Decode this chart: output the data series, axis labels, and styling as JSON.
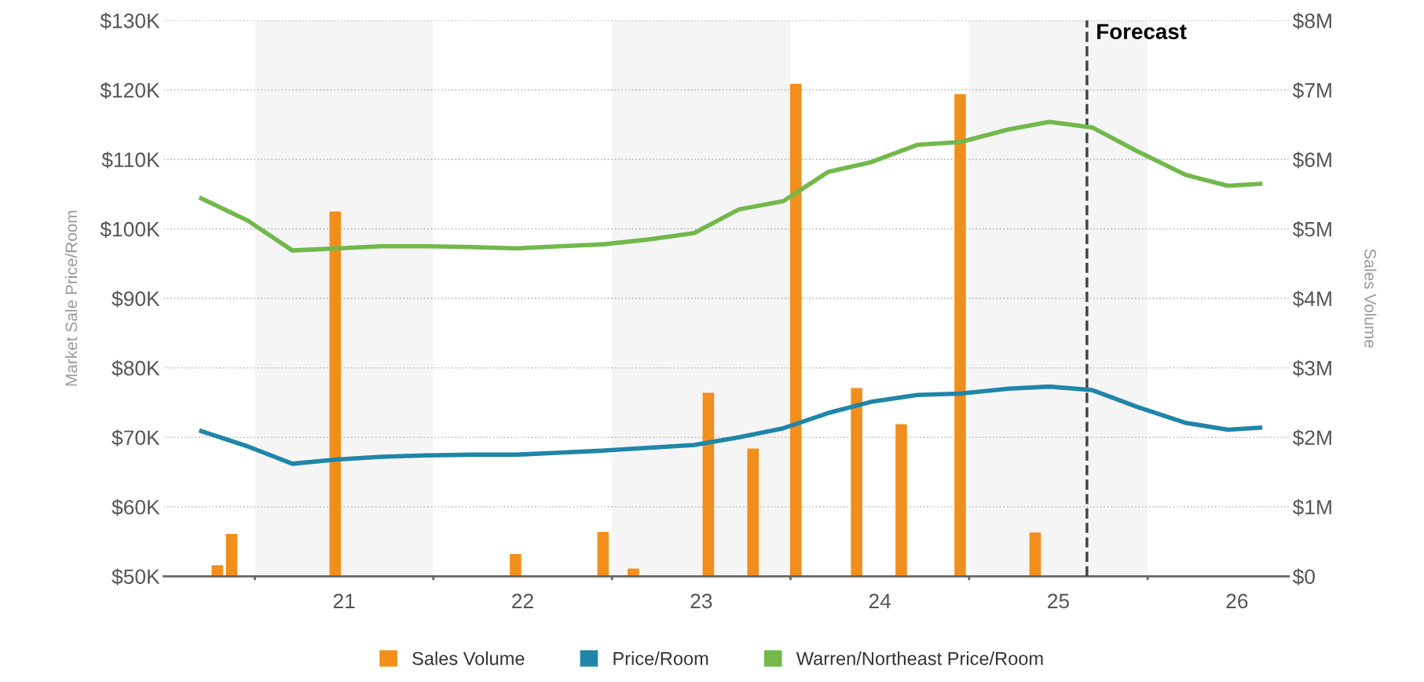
{
  "chart_data": {
    "type": "line",
    "ylabel": "Market Sale Price/Room",
    "y2label": "Sales Volume",
    "xlim": [
      20.49,
      26.79
    ],
    "xticks": [
      {
        "value": 21,
        "label": null
      },
      {
        "value": 21.5,
        "label": "21"
      },
      {
        "value": 22,
        "label": null
      },
      {
        "value": 22.5,
        "label": "22"
      },
      {
        "value": 23,
        "label": null
      },
      {
        "value": 23.5,
        "label": "23"
      },
      {
        "value": 24,
        "label": null
      },
      {
        "value": 24.5,
        "label": "24"
      },
      {
        "value": 25,
        "label": null
      },
      {
        "value": 25.5,
        "label": "25"
      },
      {
        "value": 26,
        "label": null
      },
      {
        "value": 26.5,
        "label": "26"
      }
    ],
    "ylim": [
      50,
      130
    ],
    "yticks": [
      {
        "value": 50,
        "label": "$50K"
      },
      {
        "value": 60,
        "label": "$60K"
      },
      {
        "value": 70,
        "label": "$70K"
      },
      {
        "value": 80,
        "label": "$80K"
      },
      {
        "value": 90,
        "label": "$90K"
      },
      {
        "value": 100,
        "label": "$100K"
      },
      {
        "value": 110,
        "label": "$110K"
      },
      {
        "value": 120,
        "label": "$120K"
      },
      {
        "value": 130,
        "label": "$130K"
      }
    ],
    "y2lim": [
      0,
      8
    ],
    "y2ticks": [
      {
        "value": 0,
        "label": "$0"
      },
      {
        "value": 1,
        "label": "$1M"
      },
      {
        "value": 2,
        "label": "$2M"
      },
      {
        "value": 3,
        "label": "$3M"
      },
      {
        "value": 4,
        "label": "$4M"
      },
      {
        "value": 5,
        "label": "$5M"
      },
      {
        "value": 6,
        "label": "$6M"
      },
      {
        "value": 7,
        "label": "$7M"
      },
      {
        "value": 8,
        "label": "$8M"
      }
    ],
    "series": [
      {
        "name": "Sales Volume",
        "type": "bar",
        "axis": "y2",
        "color": "#f28e1c",
        "x": [
          20.79,
          20.87,
          21.45,
          22.46,
          22.95,
          23.12,
          23.54,
          23.79,
          24.03,
          24.37,
          24.62,
          24.95,
          25.37
        ],
        "values": [
          0.16,
          0.61,
          5.25,
          0.32,
          0.64,
          0.11,
          2.64,
          1.84,
          7.09,
          2.71,
          2.19,
          6.94,
          0.63
        ]
      },
      {
        "name": "Price/Room",
        "color": "#1f86a8",
        "x": [
          20.7,
          20.96,
          21.21,
          21.46,
          21.71,
          21.96,
          22.21,
          22.46,
          22.71,
          22.96,
          23.21,
          23.46,
          23.71,
          23.96,
          24.21,
          24.45,
          24.71,
          24.95,
          25.22,
          25.45,
          25.69,
          25.94,
          26.21,
          26.45,
          26.63
        ],
        "values": [
          70.9,
          68.7,
          66.2,
          66.8,
          67.2,
          67.4,
          67.5,
          67.5,
          67.8,
          68.1,
          68.5,
          68.9,
          70.0,
          71.3,
          73.5,
          75.1,
          76.1,
          76.3,
          77.0,
          77.3,
          76.8,
          74.4,
          72.1,
          71.1,
          71.4
        ]
      },
      {
        "name": "Warren/Northeast Price/Room",
        "color": "#72b84b",
        "x": [
          20.7,
          20.96,
          21.21,
          21.46,
          21.71,
          21.96,
          22.21,
          22.46,
          22.71,
          22.96,
          23.21,
          23.46,
          23.71,
          23.96,
          24.21,
          24.45,
          24.71,
          24.95,
          25.22,
          25.45,
          25.69,
          25.94,
          26.21,
          26.45,
          26.63
        ],
        "values": [
          104.4,
          101.2,
          96.9,
          97.2,
          97.5,
          97.5,
          97.4,
          97.2,
          97.5,
          97.8,
          98.5,
          99.4,
          102.8,
          104.0,
          108.2,
          109.6,
          112.1,
          112.5,
          114.3,
          115.4,
          114.6,
          111.2,
          107.8,
          106.2,
          106.5
        ]
      }
    ],
    "bands": [
      {
        "axis": "x",
        "from": 21,
        "to": 22,
        "label": null,
        "color": "#f5f5f5"
      },
      {
        "axis": "x",
        "from": 23,
        "to": 24,
        "label": null,
        "color": "#f5f5f5"
      },
      {
        "axis": "x",
        "from": 25,
        "to": 26,
        "label": null,
        "color": "#f5f5f5"
      }
    ],
    "ref_lines": [
      {
        "axis": "x",
        "value": 25.66,
        "label": "Forecast",
        "color": "#444444",
        "line_style": "dashed"
      }
    ],
    "grid": "y",
    "legend": "bottom",
    "line_style": "solid",
    "marker": "none"
  }
}
